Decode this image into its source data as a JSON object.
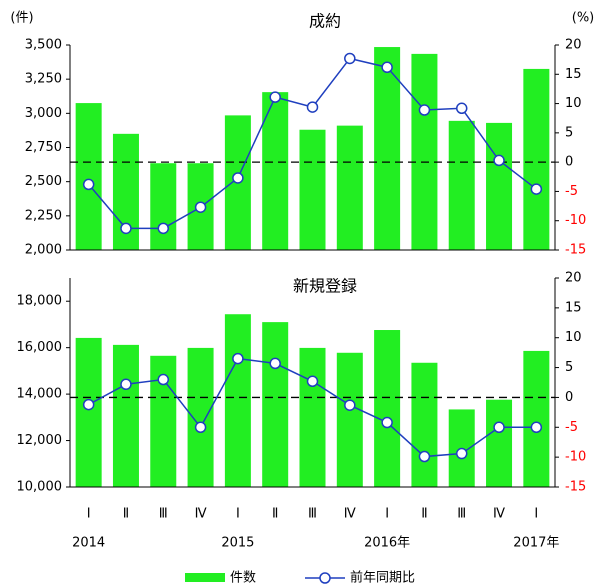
{
  "chart_data": [
    {
      "type": "bar_line",
      "title": "成約",
      "y_label": "(件)",
      "y2_label": "(%)",
      "ylim": [
        2000,
        3500
      ],
      "yticks": [
        {
          "value": 2000,
          "label": "2,000"
        },
        {
          "value": 2250,
          "label": "2,250"
        },
        {
          "value": 2500,
          "label": "2,500"
        },
        {
          "value": 2750,
          "label": "2,750"
        },
        {
          "value": 3000,
          "label": "3,000"
        },
        {
          "value": 3250,
          "label": "3,250"
        },
        {
          "value": 3500,
          "label": "3,500"
        }
      ],
      "y2lim": [
        -15,
        20
      ],
      "y2ticks": [
        -15,
        -10,
        -5,
        0,
        5,
        10,
        15,
        20
      ],
      "negative_tick_color": "#ff0000",
      "zero_line": true,
      "series": [
        {
          "type": "bar",
          "color": "#22ee22",
          "values": [
            3075,
            2850,
            2635,
            2635,
            2985,
            3155,
            2880,
            2910,
            3485,
            3435,
            2945,
            2930,
            3325
          ]
        },
        {
          "type": "line",
          "axis": "y2",
          "color": "#1f3fbf",
          "values": [
            -3.8,
            -11.3,
            -11.3,
            -7.7,
            -2.7,
            11.1,
            9.4,
            17.7,
            16.2,
            8.9,
            9.2,
            0.3,
            -4.6
          ]
        }
      ]
    },
    {
      "type": "bar_line",
      "title": "新規登録",
      "ylim": [
        10000,
        19000
      ],
      "yticks": [
        {
          "value": 10000,
          "label": "10,000"
        },
        {
          "value": 12000,
          "label": "12,000"
        },
        {
          "value": 14000,
          "label": "14,000"
        },
        {
          "value": 16000,
          "label": "16,000"
        },
        {
          "value": 18000,
          "label": "18,000"
        }
      ],
      "y2lim": [
        -15,
        20
      ],
      "y2ticks": [
        -15,
        -10,
        -5,
        0,
        5,
        10,
        15,
        20
      ],
      "negative_tick_color": "#ff0000",
      "zero_line": true,
      "categories": [
        "Ⅰ",
        "Ⅱ",
        "Ⅲ",
        "Ⅳ",
        "Ⅰ",
        "Ⅱ",
        "Ⅲ",
        "Ⅳ",
        "Ⅰ",
        "Ⅱ",
        "Ⅲ",
        "Ⅳ",
        "Ⅰ"
      ],
      "year_labels": [
        "2014",
        null,
        null,
        null,
        "2015",
        null,
        null,
        null,
        "2016年",
        null,
        null,
        null,
        "2017年"
      ],
      "series": [
        {
          "name": "件数",
          "type": "bar",
          "color": "#22ee22",
          "values": [
            16420,
            16120,
            15650,
            15990,
            17440,
            17100,
            15990,
            15780,
            16760,
            15350,
            13340,
            13760,
            15860
          ]
        },
        {
          "name": "前年同期比",
          "type": "line",
          "axis": "y2",
          "color": "#1f3fbf",
          "values": [
            -1.2,
            2.2,
            3.0,
            -5.0,
            6.5,
            5.7,
            2.7,
            -1.3,
            -4.2,
            -9.9,
            -9.4,
            -5.0,
            -5.0
          ]
        }
      ]
    }
  ]
}
